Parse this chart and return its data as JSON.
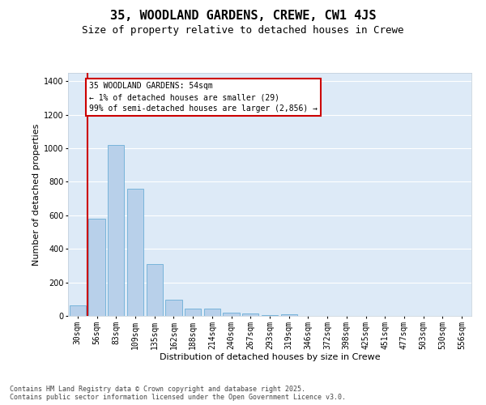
{
  "title1": "35, WOODLAND GARDENS, CREWE, CW1 4JS",
  "title2": "Size of property relative to detached houses in Crewe",
  "xlabel": "Distribution of detached houses by size in Crewe",
  "ylabel": "Number of detached properties",
  "bar_labels": [
    "30sqm",
    "56sqm",
    "83sqm",
    "109sqm",
    "135sqm",
    "162sqm",
    "188sqm",
    "214sqm",
    "240sqm",
    "267sqm",
    "293sqm",
    "319sqm",
    "346sqm",
    "372sqm",
    "398sqm",
    "425sqm",
    "451sqm",
    "477sqm",
    "503sqm",
    "530sqm",
    "556sqm"
  ],
  "bar_values": [
    65,
    580,
    1020,
    760,
    310,
    95,
    45,
    45,
    20,
    15,
    3,
    12,
    0,
    0,
    0,
    0,
    0,
    0,
    0,
    0,
    0
  ],
  "bar_color": "#b8d0ea",
  "bar_edge_color": "#6baed6",
  "bg_color": "#ddeaf7",
  "grid_color": "#ffffff",
  "annotation_text": "35 WOODLAND GARDENS: 54sqm\n← 1% of detached houses are smaller (29)\n99% of semi-detached houses are larger (2,856) →",
  "annotation_box_color": "#ffffff",
  "annotation_box_edge": "#cc0000",
  "vline_color": "#cc0000",
  "ylim": [
    0,
    1450
  ],
  "yticks": [
    0,
    200,
    400,
    600,
    800,
    1000,
    1200,
    1400
  ],
  "footer": "Contains HM Land Registry data © Crown copyright and database right 2025.\nContains public sector information licensed under the Open Government Licence v3.0.",
  "title1_fontsize": 11,
  "title2_fontsize": 9,
  "annotation_fontsize": 7,
  "footer_fontsize": 6,
  "tick_fontsize": 7,
  "ylabel_fontsize": 8,
  "xlabel_fontsize": 8
}
